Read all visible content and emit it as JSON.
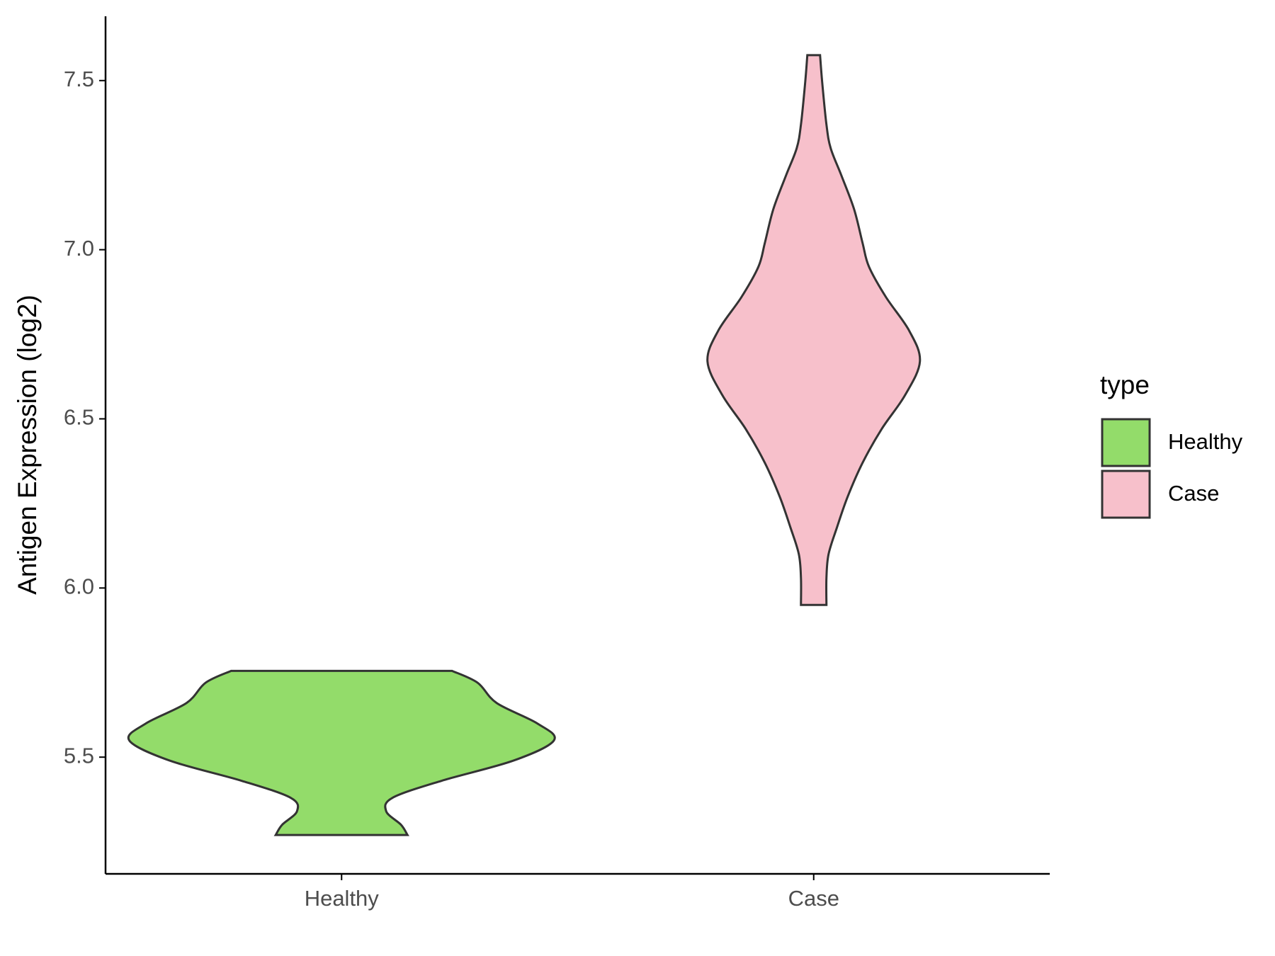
{
  "chart_data": {
    "type": "violin",
    "y_label": "Antigen Expression (log2)",
    "categories": [
      "Healthy",
      "Case"
    ],
    "legend_title": "type",
    "legend_position": "right",
    "outline_color": "#333333",
    "series": [
      {
        "name": "Healthy",
        "color": "#93dc6a",
        "y": [
          5.755,
          5.72,
          5.66,
          5.6,
          5.55,
          5.49,
          5.43,
          5.38,
          5.34,
          5.3,
          5.27
        ],
        "density": [
          0.52,
          0.64,
          0.73,
          0.92,
          1.0,
          0.81,
          0.47,
          0.24,
          0.21,
          0.28,
          0.31
        ]
      },
      {
        "name": "Case",
        "color": "#f7c0cb",
        "y": [
          7.575,
          7.495,
          7.37,
          7.3,
          7.22,
          7.12,
          7.02,
          6.95,
          6.86,
          6.76,
          6.67,
          6.57,
          6.47,
          6.37,
          6.27,
          6.18,
          6.1,
          6.03,
          5.95
        ],
        "density": [
          0.03,
          0.04,
          0.06,
          0.08,
          0.13,
          0.19,
          0.23,
          0.26,
          0.34,
          0.45,
          0.5,
          0.43,
          0.32,
          0.23,
          0.16,
          0.11,
          0.07,
          0.06,
          0.06
        ]
      }
    ],
    "ylim": [
      5.155,
      7.69
    ],
    "yticks": [
      5.5,
      {
        "value": 6,
        "label": "6.0"
      },
      6.5,
      {
        "value": 7,
        "label": "7.0"
      },
      7.5
    ],
    "grid": false
  }
}
